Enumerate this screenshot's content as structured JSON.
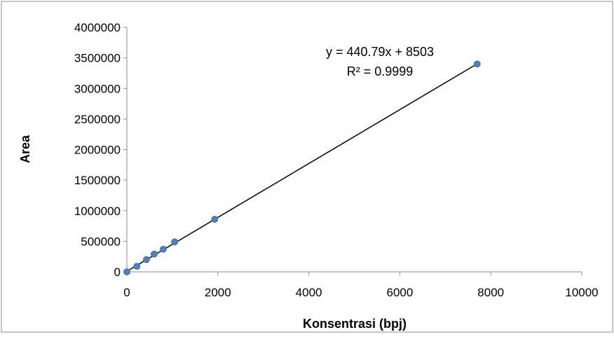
{
  "chart_data": {
    "type": "scatter",
    "title": "",
    "xlabel": "Konsentrasi (bpj)",
    "ylabel": "Area",
    "xlim": [
      0,
      10000
    ],
    "ylim": [
      0,
      4000000
    ],
    "xticks": [
      0,
      2000,
      4000,
      6000,
      8000,
      10000
    ],
    "yticks": [
      0,
      500000,
      1000000,
      1500000,
      2000000,
      2500000,
      3000000,
      3500000,
      4000000
    ],
    "xtick_labels": [
      "0",
      "2000",
      "4000",
      "6000",
      "8000",
      "10000"
    ],
    "ytick_labels": [
      "0",
      "500000",
      "1000000",
      "1500000",
      "2000000",
      "2500000",
      "3000000",
      "3500000",
      "4000000"
    ],
    "grid": false,
    "legend": "none",
    "series": [
      {
        "color": "#4f81bd",
        "points": [
          {
            "x": 0,
            "y": 0
          },
          {
            "x": 220,
            "y": 90000
          },
          {
            "x": 430,
            "y": 200000
          },
          {
            "x": 600,
            "y": 290000
          },
          {
            "x": 800,
            "y": 370000
          },
          {
            "x": 1050,
            "y": 490000
          },
          {
            "x": 1930,
            "y": 860000
          },
          {
            "x": 7700,
            "y": 3400000
          }
        ]
      }
    ],
    "trendline": {
      "type": "linear",
      "slope": 440.79,
      "intercept": 8503,
      "color": "#000000",
      "x_range": [
        0,
        7700
      ]
    },
    "annotations": {
      "equation": "y = 440.79x + 8503",
      "r_squared": "R² = 0.9999"
    }
  }
}
